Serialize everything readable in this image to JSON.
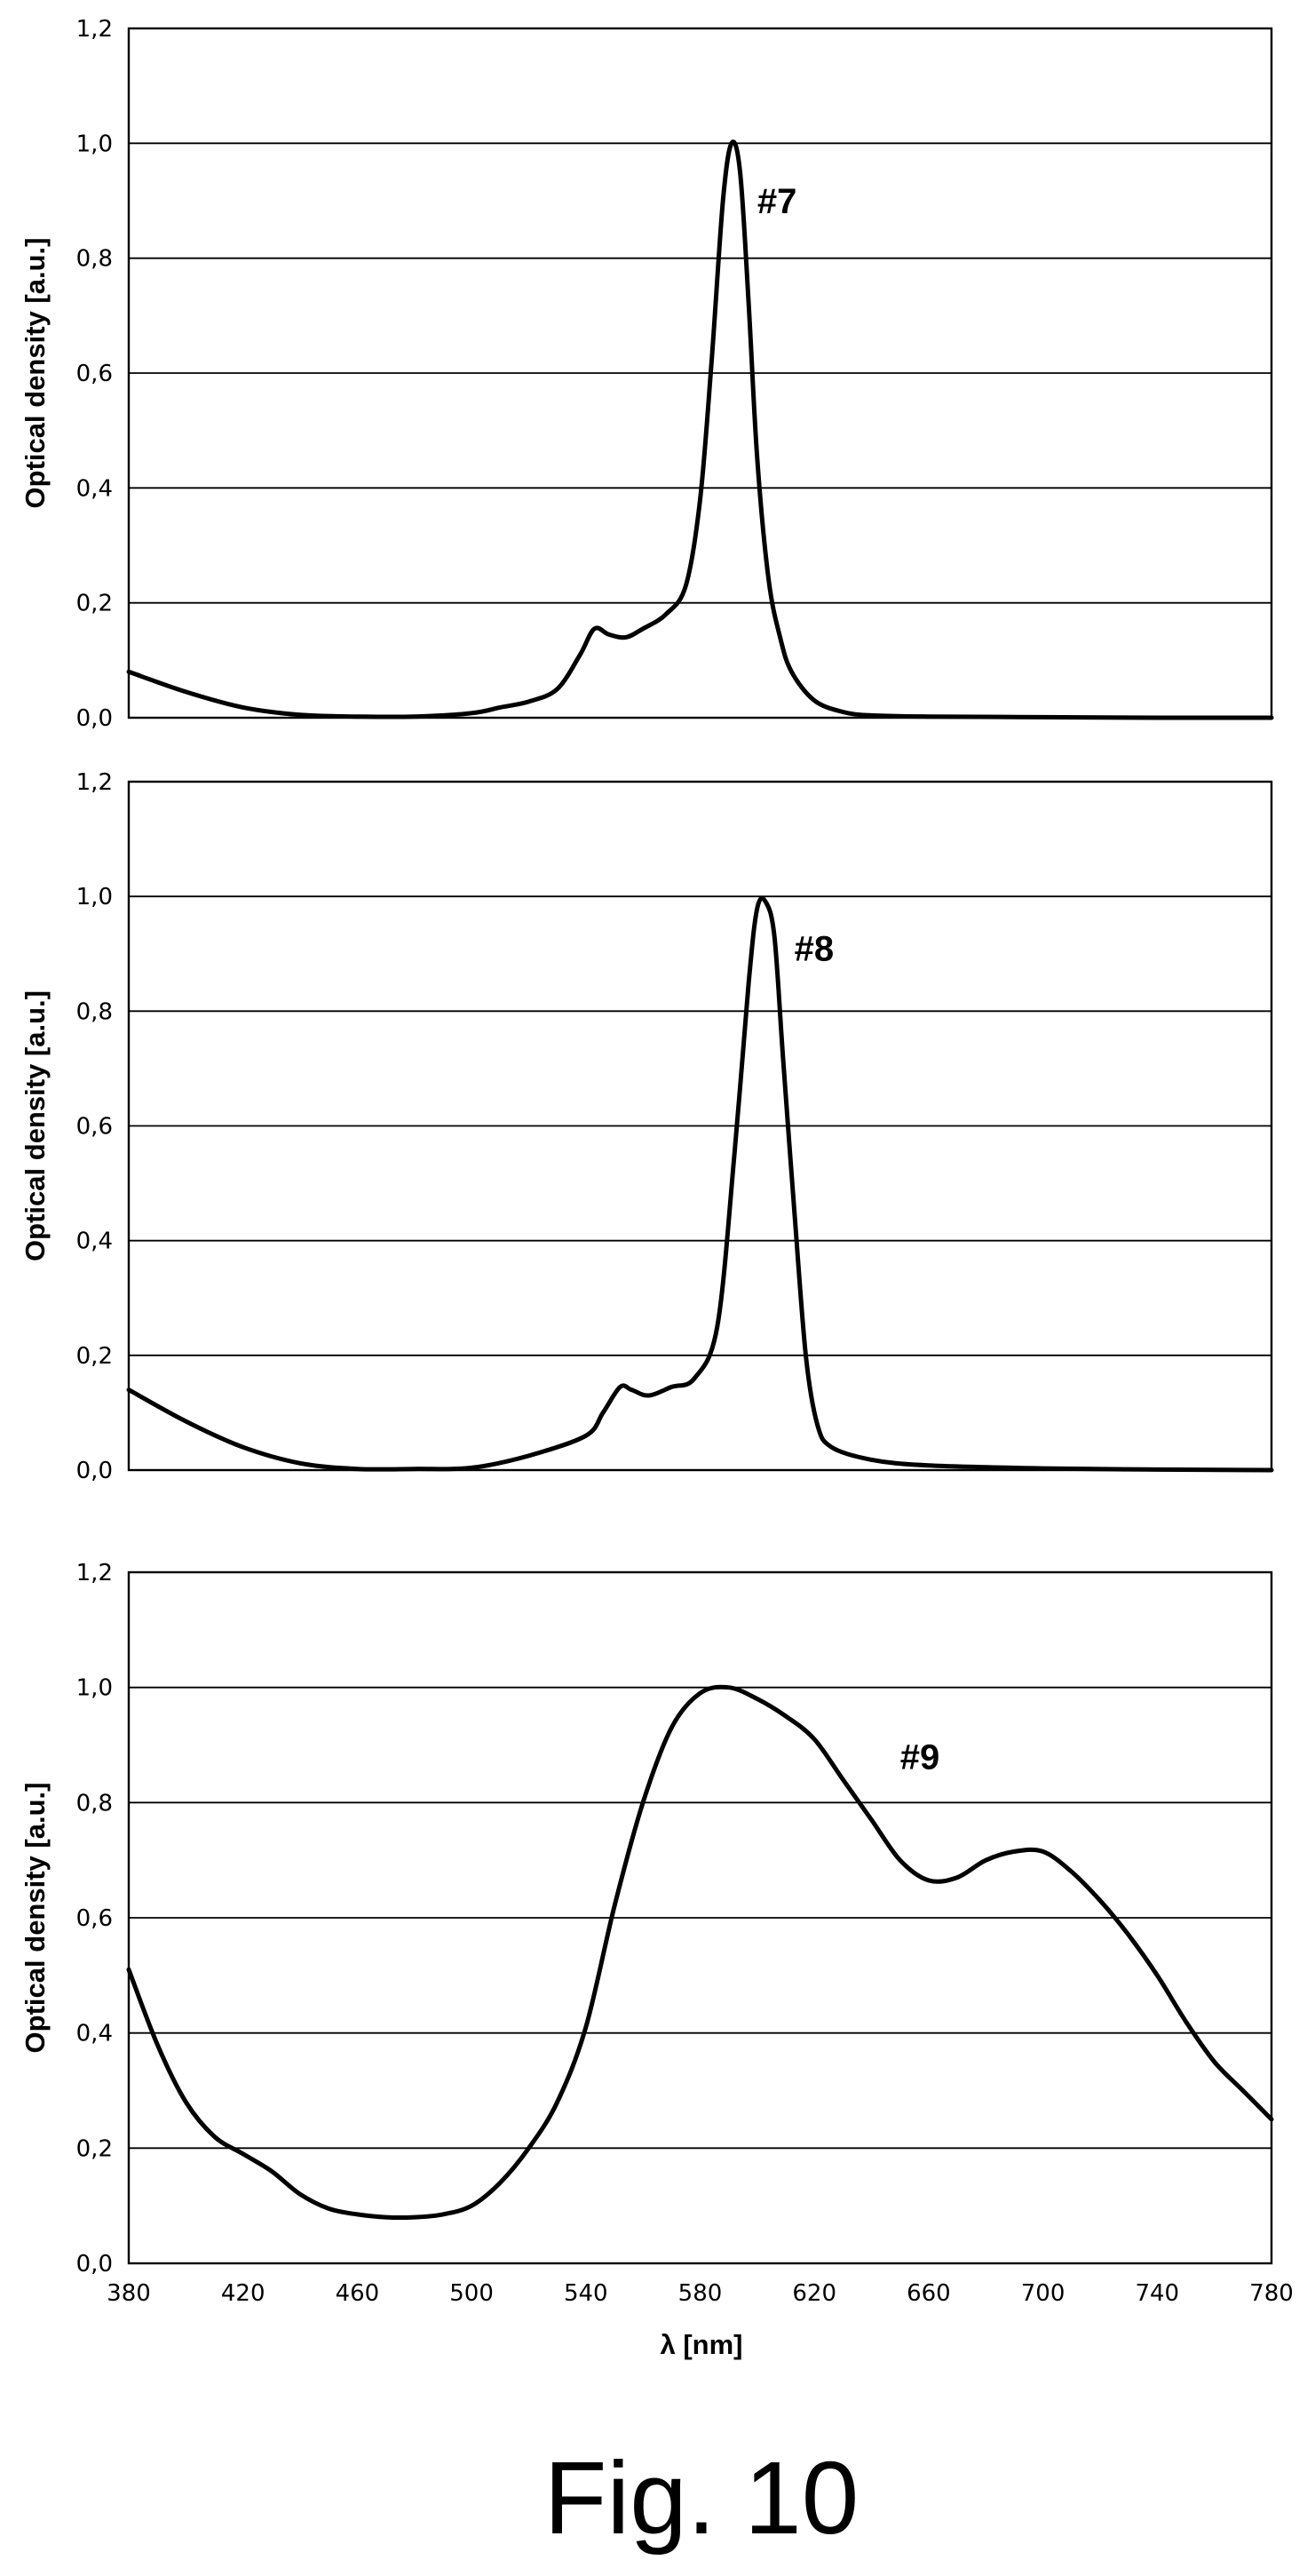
{
  "figure_caption": "Fig. 10",
  "chart_data": [
    {
      "type": "line",
      "xlim": [
        380,
        780
      ],
      "ylim": [
        0,
        1.2
      ],
      "ylabel": "Optical density [a.u.]",
      "xlabel": "",
      "y_ticks": [
        "0,0",
        "0,2",
        "0,4",
        "0,6",
        "0,8",
        "1,0",
        "1,2"
      ],
      "x_ticks": [],
      "grid": true,
      "annotation": {
        "text": "#7",
        "x": 600,
        "y": 0.9
      },
      "series": [
        {
          "name": "#7",
          "x": [
            380,
            400,
            420,
            440,
            460,
            480,
            500,
            510,
            520,
            530,
            538,
            543,
            548,
            554,
            560,
            568,
            575,
            580,
            584,
            588,
            591,
            594,
            597,
            600,
            604,
            608,
            612,
            620,
            630,
            640,
            660,
            700,
            740,
            780
          ],
          "y": [
            0.08,
            0.045,
            0.018,
            0.005,
            0.002,
            0.002,
            0.008,
            0.018,
            0.028,
            0.05,
            0.11,
            0.155,
            0.145,
            0.14,
            0.155,
            0.18,
            0.23,
            0.38,
            0.62,
            0.9,
            1.0,
            0.95,
            0.72,
            0.45,
            0.24,
            0.14,
            0.08,
            0.03,
            0.01,
            0.004,
            0.002,
            0.001,
            0.0,
            0.0
          ]
        }
      ]
    },
    {
      "type": "line",
      "xlim": [
        380,
        780
      ],
      "ylim": [
        0,
        1.2
      ],
      "ylabel": "Optical density [a.u.]",
      "xlabel": "",
      "y_ticks": [
        "0,0",
        "0,2",
        "0,4",
        "0,6",
        "0,8",
        "1,0",
        "1,2"
      ],
      "x_ticks": [],
      "grid": true,
      "annotation": {
        "text": "#8",
        "x": 613,
        "y": 0.91
      },
      "series": [
        {
          "name": "#8",
          "x": [
            380,
            400,
            420,
            440,
            460,
            480,
            500,
            520,
            540,
            546,
            552,
            556,
            562,
            570,
            578,
            586,
            592,
            597,
            600,
            603,
            606,
            609,
            613,
            617,
            621,
            626,
            640,
            660,
            700,
            740,
            780
          ],
          "y": [
            0.14,
            0.085,
            0.04,
            0.012,
            0.002,
            0.002,
            0.004,
            0.025,
            0.06,
            0.1,
            0.145,
            0.14,
            0.13,
            0.145,
            0.16,
            0.25,
            0.55,
            0.85,
            0.98,
            0.99,
            0.93,
            0.72,
            0.45,
            0.2,
            0.08,
            0.04,
            0.018,
            0.008,
            0.003,
            0.001,
            0.0
          ]
        }
      ]
    },
    {
      "type": "line",
      "xlim": [
        380,
        780
      ],
      "ylim": [
        0,
        1.2
      ],
      "ylabel": "Optical density [a.u.]",
      "xlabel": "λ [nm]",
      "y_ticks": [
        "0,0",
        "0,2",
        "0,4",
        "0,6",
        "0,8",
        "1,0",
        "1,2"
      ],
      "x_ticks": [
        "380",
        "420",
        "460",
        "500",
        "540",
        "580",
        "620",
        "660",
        "700",
        "740",
        "780"
      ],
      "grid": true,
      "annotation": {
        "text": "#9",
        "x": 650,
        "y": 0.88
      },
      "series": [
        {
          "name": "#9",
          "x": [
            380,
            390,
            400,
            410,
            420,
            430,
            440,
            450,
            460,
            470,
            480,
            490,
            500,
            510,
            520,
            530,
            540,
            550,
            560,
            570,
            580,
            590,
            600,
            610,
            620,
            630,
            640,
            650,
            660,
            670,
            680,
            690,
            700,
            710,
            720,
            730,
            740,
            750,
            760,
            770,
            780
          ],
          "y": [
            0.51,
            0.38,
            0.28,
            0.22,
            0.19,
            0.16,
            0.12,
            0.095,
            0.085,
            0.08,
            0.08,
            0.085,
            0.1,
            0.14,
            0.2,
            0.28,
            0.41,
            0.62,
            0.8,
            0.93,
            0.99,
            1.0,
            0.98,
            0.95,
            0.91,
            0.84,
            0.77,
            0.7,
            0.665,
            0.67,
            0.7,
            0.715,
            0.715,
            0.68,
            0.63,
            0.57,
            0.5,
            0.42,
            0.35,
            0.3,
            0.25
          ]
        }
      ]
    }
  ]
}
